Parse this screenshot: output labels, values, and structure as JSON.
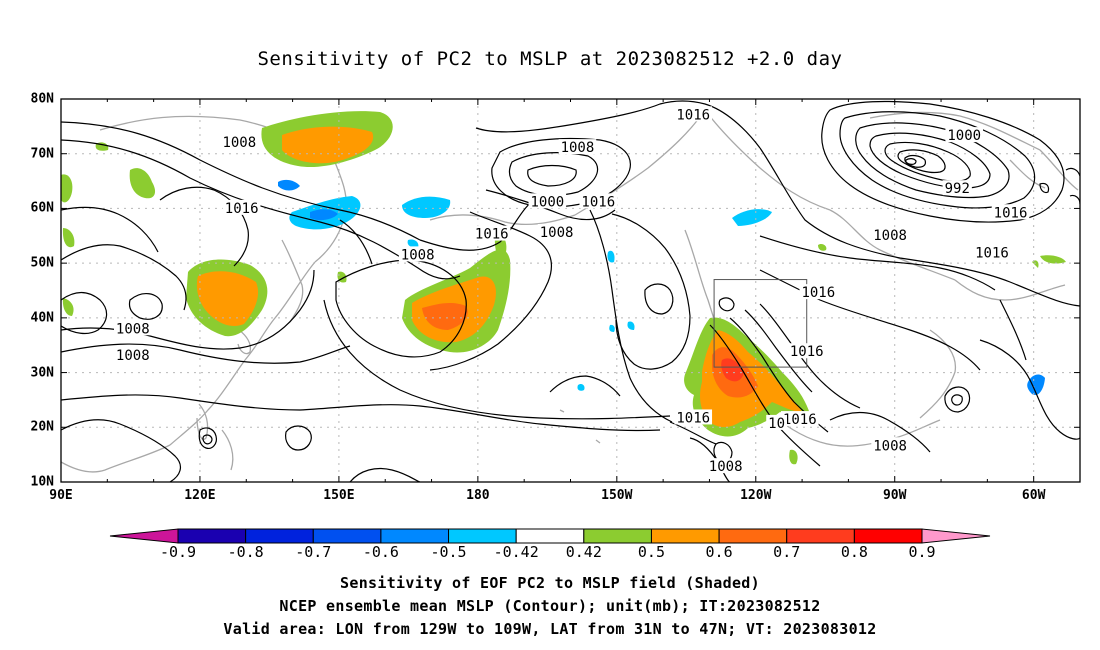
{
  "title": "Sensitivity of PC2 to MSLP at 2023082512 +2.0 day",
  "lat_ticks": [
    {
      "value": 80,
      "label": "80N"
    },
    {
      "value": 70,
      "label": "70N"
    },
    {
      "value": 60,
      "label": "60N"
    },
    {
      "value": 50,
      "label": "50N"
    },
    {
      "value": 40,
      "label": "40N"
    },
    {
      "value": 30,
      "label": "30N"
    },
    {
      "value": 20,
      "label": "20N"
    },
    {
      "value": 10,
      "label": "10N"
    }
  ],
  "lon_ticks": [
    {
      "value": 90,
      "label": "90E"
    },
    {
      "value": 120,
      "label": "120E"
    },
    {
      "value": 150,
      "label": "150E"
    },
    {
      "value": 180,
      "label": "180"
    },
    {
      "value": 210,
      "label": "150W"
    },
    {
      "value": 240,
      "label": "120W"
    },
    {
      "value": 270,
      "label": "90W"
    },
    {
      "value": 300,
      "label": "60W"
    }
  ],
  "extent": {
    "lon_min": 90,
    "lon_max": 310,
    "lat_min": 10,
    "lat_max": 80
  },
  "valid_box": {
    "lon_min": 231,
    "lon_max": 251,
    "lat_min": 31,
    "lat_max": 47
  },
  "contour_labels": [
    {
      "text": "1016",
      "lon": 226.5,
      "lat": 77.2
    },
    {
      "text": "1008",
      "lon": 201.5,
      "lat": 71.2
    },
    {
      "text": "1000",
      "lon": 285,
      "lat": 73.4
    },
    {
      "text": "992",
      "lon": 283.5,
      "lat": 63.7
    },
    {
      "text": "1000",
      "lon": 195,
      "lat": 61.3
    },
    {
      "text": "1016",
      "lon": 206,
      "lat": 61.3
    },
    {
      "text": "1008",
      "lon": 197,
      "lat": 55.7
    },
    {
      "text": "1016",
      "lon": 183,
      "lat": 55.4
    },
    {
      "text": "1008",
      "lon": 167,
      "lat": 51.6
    },
    {
      "text": "1008",
      "lon": 128.5,
      "lat": 72.1
    },
    {
      "text": "1016",
      "lon": 129,
      "lat": 60.1
    },
    {
      "text": "1016",
      "lon": 295,
      "lat": 59.3
    },
    {
      "text": "1008",
      "lon": 269,
      "lat": 55.1
    },
    {
      "text": "1016",
      "lon": 291,
      "lat": 51.9
    },
    {
      "text": "1016",
      "lon": 253.5,
      "lat": 44.7
    },
    {
      "text": "1016",
      "lon": 251,
      "lat": 33.9
    },
    {
      "text": "1008",
      "lon": 105.5,
      "lat": 38.1
    },
    {
      "text": "1008",
      "lon": 105.5,
      "lat": 33.2
    },
    {
      "text": "1016",
      "lon": 226.5,
      "lat": 21.8
    },
    {
      "text": "1016",
      "lon": 249.5,
      "lat": 21.5
    },
    {
      "text": "10",
      "lon": 244.5,
      "lat": 20.8
    },
    {
      "text": "1008",
      "lon": 269,
      "lat": 16.7
    },
    {
      "text": "1008",
      "lon": 233.5,
      "lat": 12.9
    }
  ],
  "colorbar": {
    "labels": [
      "-0.9",
      "-0.8",
      "-0.7",
      "-0.6",
      "-0.5",
      "-0.42",
      "0.42",
      "0.5",
      "0.6",
      "0.7",
      "0.8",
      "0.9"
    ],
    "colors": [
      "#1a00b0",
      "#0022dd",
      "#0050f0",
      "#0088ff",
      "#00c8ff",
      "#ffffff",
      "#8ccc30",
      "#ff9a00",
      "#ff6a10",
      "#ff3c1e",
      "#ff0000"
    ],
    "low_end_color": "#cc1599",
    "high_end_color": "#ff99cc"
  },
  "captions": [
    "Sensitivity of EOF PC2 to MSLP field (Shaded)",
    "NCEP ensemble mean MSLP (Contour); unit(mb); IT:2023082512",
    "Valid area: LON from 129W to 109W, LAT from 31N to 47N; VT: 2023083012"
  ]
}
